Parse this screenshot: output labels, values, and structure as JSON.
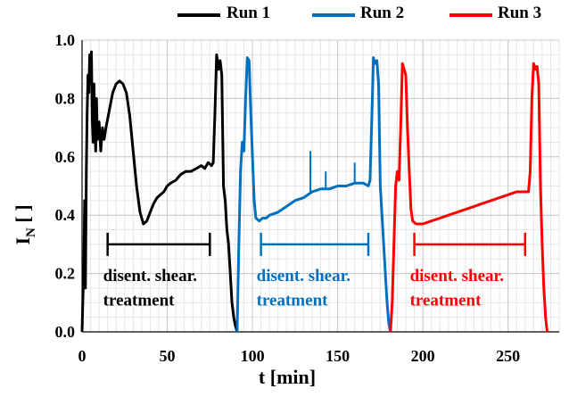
{
  "chart_data": {
    "type": "line",
    "title": "",
    "xlabel": "t [min]",
    "ylabel_main": "I",
    "ylabel_sub": "N",
    "ylabel_unit": " [ ]",
    "xlim": [
      0,
      280
    ],
    "ylim": [
      0,
      1.0
    ],
    "xticks": [
      0,
      50,
      100,
      150,
      200,
      250
    ],
    "yticks": [
      0.0,
      0.2,
      0.4,
      0.6,
      0.8,
      1.0
    ],
    "ytick_labels": [
      "0.0",
      "0.2",
      "0.4",
      "0.6",
      "0.8",
      "1.0"
    ],
    "grid": true,
    "legend_position": "top",
    "series": [
      {
        "name": "Run 1",
        "color": "#000000",
        "points": [
          [
            0,
            0.0
          ],
          [
            0.5,
            0.12
          ],
          [
            1,
            0.2
          ],
          [
            1.5,
            0.45
          ],
          [
            2,
            0.15
          ],
          [
            2.5,
            0.55
          ],
          [
            3,
            0.75
          ],
          [
            3.5,
            0.88
          ],
          [
            4,
            0.82
          ],
          [
            4.5,
            0.95
          ],
          [
            5,
            0.9
          ],
          [
            5.5,
            0.96
          ],
          [
            6,
            0.72
          ],
          [
            6.5,
            0.65
          ],
          [
            7,
            0.85
          ],
          [
            7.5,
            0.7
          ],
          [
            8,
            0.62
          ],
          [
            8.5,
            0.8
          ],
          [
            9,
            0.66
          ],
          [
            10,
            0.72
          ],
          [
            11,
            0.62
          ],
          [
            12,
            0.7
          ],
          [
            13,
            0.66
          ],
          [
            14,
            0.7
          ],
          [
            16,
            0.76
          ],
          [
            18,
            0.82
          ],
          [
            20,
            0.85
          ],
          [
            22,
            0.86
          ],
          [
            24,
            0.85
          ],
          [
            26,
            0.82
          ],
          [
            28,
            0.74
          ],
          [
            30,
            0.62
          ],
          [
            32,
            0.5
          ],
          [
            34,
            0.41
          ],
          [
            36,
            0.37
          ],
          [
            38,
            0.38
          ],
          [
            40,
            0.41
          ],
          [
            42,
            0.44
          ],
          [
            44,
            0.46
          ],
          [
            46,
            0.47
          ],
          [
            48,
            0.48
          ],
          [
            50,
            0.5
          ],
          [
            52,
            0.51
          ],
          [
            55,
            0.52
          ],
          [
            58,
            0.54
          ],
          [
            61,
            0.55
          ],
          [
            64,
            0.55
          ],
          [
            67,
            0.56
          ],
          [
            70,
            0.57
          ],
          [
            72,
            0.56
          ],
          [
            74,
            0.58
          ],
          [
            76,
            0.57
          ],
          [
            77,
            0.58
          ],
          [
            78,
            0.75
          ],
          [
            79,
            0.95
          ],
          [
            80,
            0.9
          ],
          [
            81,
            0.93
          ],
          [
            82,
            0.88
          ],
          [
            83,
            0.5
          ],
          [
            84,
            0.45
          ],
          [
            85,
            0.35
          ],
          [
            86,
            0.3
          ],
          [
            87,
            0.2
          ],
          [
            88,
            0.1
          ],
          [
            89,
            0.05
          ],
          [
            90,
            0.02
          ],
          [
            91,
            0.0
          ]
        ]
      },
      {
        "name": "Run 2",
        "color": "#0070c0",
        "points": [
          [
            91,
            0.0
          ],
          [
            92,
            0.3
          ],
          [
            93,
            0.55
          ],
          [
            94,
            0.65
          ],
          [
            95,
            0.62
          ],
          [
            96,
            0.8
          ],
          [
            97,
            0.94
          ],
          [
            98,
            0.93
          ],
          [
            99,
            0.75
          ],
          [
            100,
            0.6
          ],
          [
            101,
            0.45
          ],
          [
            102,
            0.39
          ],
          [
            104,
            0.38
          ],
          [
            106,
            0.39
          ],
          [
            108,
            0.39
          ],
          [
            110,
            0.4
          ],
          [
            115,
            0.41
          ],
          [
            120,
            0.43
          ],
          [
            125,
            0.45
          ],
          [
            130,
            0.46
          ],
          [
            135,
            0.48
          ],
          [
            140,
            0.49
          ],
          [
            145,
            0.49
          ],
          [
            150,
            0.5
          ],
          [
            155,
            0.5
          ],
          [
            160,
            0.51
          ],
          [
            165,
            0.51
          ],
          [
            168,
            0.5
          ],
          [
            169,
            0.52
          ],
          [
            170,
            0.72
          ],
          [
            171,
            0.94
          ],
          [
            172,
            0.92
          ],
          [
            173,
            0.93
          ],
          [
            174,
            0.85
          ],
          [
            175,
            0.5
          ],
          [
            176,
            0.4
          ],
          [
            177,
            0.3
          ],
          [
            178,
            0.2
          ],
          [
            179,
            0.1
          ],
          [
            180,
            0.03
          ],
          [
            181,
            0.0
          ]
        ]
      },
      {
        "name": "Run 3",
        "color": "#ff0000",
        "points": [
          [
            181,
            0.0
          ],
          [
            182,
            0.1
          ],
          [
            183,
            0.3
          ],
          [
            184,
            0.5
          ],
          [
            185,
            0.55
          ],
          [
            186,
            0.52
          ],
          [
            187,
            0.7
          ],
          [
            188,
            0.92
          ],
          [
            189,
            0.9
          ],
          [
            190,
            0.88
          ],
          [
            191,
            0.7
          ],
          [
            192,
            0.55
          ],
          [
            193,
            0.42
          ],
          [
            194,
            0.38
          ],
          [
            196,
            0.37
          ],
          [
            198,
            0.37
          ],
          [
            200,
            0.37
          ],
          [
            205,
            0.38
          ],
          [
            210,
            0.39
          ],
          [
            215,
            0.4
          ],
          [
            220,
            0.41
          ],
          [
            225,
            0.42
          ],
          [
            230,
            0.43
          ],
          [
            235,
            0.44
          ],
          [
            240,
            0.45
          ],
          [
            245,
            0.46
          ],
          [
            250,
            0.47
          ],
          [
            255,
            0.48
          ],
          [
            260,
            0.48
          ],
          [
            262,
            0.48
          ],
          [
            263,
            0.55
          ],
          [
            264,
            0.8
          ],
          [
            265,
            0.92
          ],
          [
            266,
            0.9
          ],
          [
            267,
            0.91
          ],
          [
            268,
            0.85
          ],
          [
            269,
            0.5
          ],
          [
            270,
            0.3
          ],
          [
            271,
            0.15
          ],
          [
            272,
            0.05
          ],
          [
            273,
            0.0
          ]
        ]
      }
    ],
    "spikes": [
      {
        "series": 1,
        "x": 134,
        "y": 0.62
      },
      {
        "series": 1,
        "x": 160,
        "y": 0.58
      },
      {
        "series": 1,
        "x": 143,
        "y": 0.55
      }
    ],
    "annotations": [
      {
        "series": 0,
        "x_start": 15,
        "x_end": 75,
        "y": 0.3,
        "line1": "disent. shear.",
        "line2": "treatment"
      },
      {
        "series": 1,
        "x_start": 105,
        "x_end": 168,
        "y": 0.3,
        "line1": "disent. shear.",
        "line2": "treatment"
      },
      {
        "series": 2,
        "x_start": 195,
        "x_end": 260,
        "y": 0.3,
        "line1": "disent. shear.",
        "line2": "treatment"
      }
    ]
  }
}
